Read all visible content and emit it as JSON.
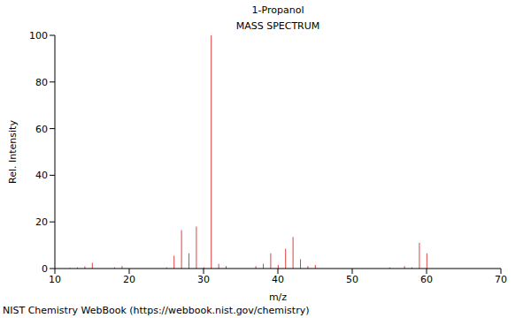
{
  "chart_data": {
    "type": "bar",
    "title": "1-Propanol",
    "subtitle": "MASS SPECTRUM",
    "x_label": "m/z",
    "y_label": "Rel. Intensity",
    "annotations": [
      "NIST Chemistry WebBook (https://webbook.nist.gov/chemistry)"
    ],
    "x": [
      12,
      13,
      14,
      15,
      18,
      19,
      25,
      26,
      27,
      28,
      29,
      30,
      31,
      32,
      33,
      37,
      38,
      39,
      40,
      41,
      42,
      43,
      44,
      45,
      55,
      57,
      58,
      59,
      60
    ],
    "values": [
      0.3,
      0.5,
      0.9,
      2.5,
      0.5,
      1,
      0.5,
      5.5,
      16.5,
      6.5,
      18,
      0.6,
      100,
      2,
      1,
      1,
      2,
      6.5,
      1.5,
      8.5,
      13.5,
      4,
      1,
      1.5,
      0.5,
      1,
      0.5,
      11,
      6.5
    ],
    "color": "#e04040",
    "xlim": [
      10,
      70
    ],
    "ylim": [
      0,
      100
    ],
    "xticks": [
      10,
      20,
      30,
      40,
      50,
      60,
      70
    ],
    "yticks": [
      0,
      20,
      40,
      60,
      80,
      100
    ]
  }
}
